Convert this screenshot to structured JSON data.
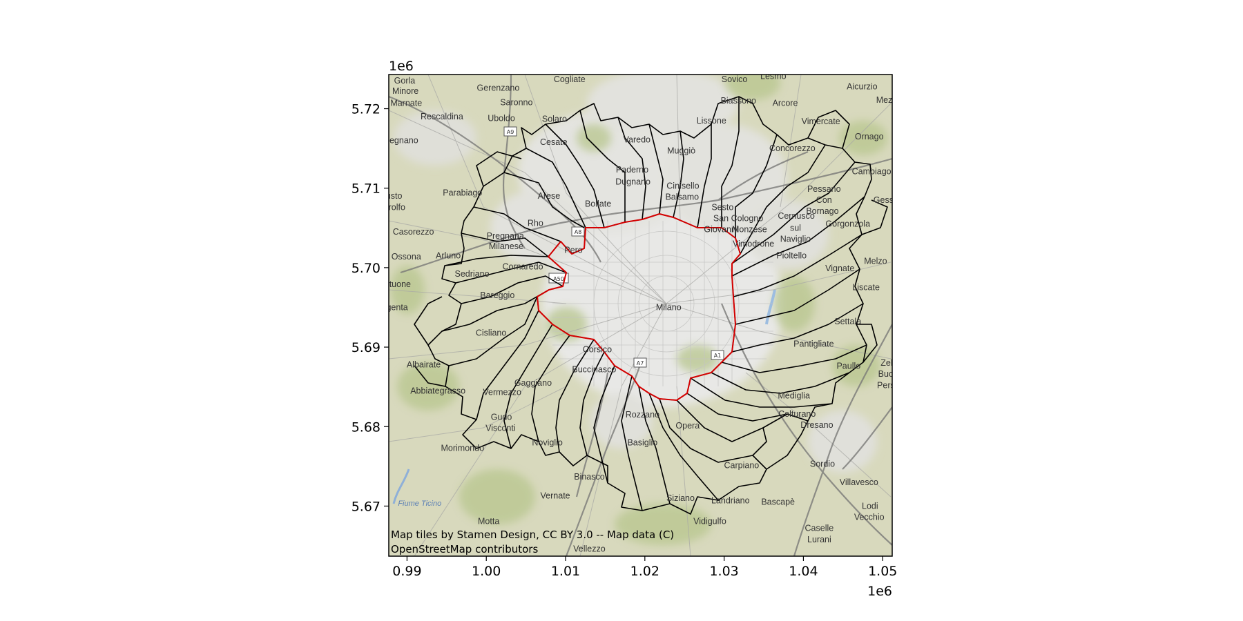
{
  "chart_data": {
    "type": "map",
    "x_axis": {
      "range": [
        0.9877,
        1.0512
      ],
      "ticks": [
        0.99,
        1.0,
        1.01,
        1.02,
        1.03,
        1.04,
        1.05
      ],
      "tick_labels": [
        "0.99",
        "1.00",
        "1.01",
        "1.02",
        "1.03",
        "1.04",
        "1.05"
      ],
      "offset_text": "1e6"
    },
    "y_axis": {
      "range": [
        5.6637,
        5.7243
      ],
      "ticks": [
        5.67,
        5.68,
        5.69,
        5.7,
        5.71,
        5.72
      ],
      "tick_labels": [
        "5.67",
        "5.68",
        "5.69",
        "5.70",
        "5.71",
        "5.72"
      ],
      "offset_text": "1e6"
    },
    "attribution": [
      "Map tiles by Stamen Design, CC BY 3.0 -- Map data (C)",
      "OpenStreetMap contributors"
    ],
    "colors": {
      "municipal_boundary": "#000000",
      "highlighted_boundary": "#d40000",
      "land": "#dcdcc4",
      "urban": "#e6e6e6",
      "green": "#b9c993"
    },
    "place_labels": [
      {
        "text": "Gorla",
        "x": 0.9897,
        "y": 5.7235
      },
      {
        "text": "Minore",
        "x": 0.9898,
        "y": 5.7222
      },
      {
        "text": "Marnate",
        "x": 0.9899,
        "y": 5.7207
      },
      {
        "text": "Gerenzano",
        "x": 1.0015,
        "y": 5.7226
      },
      {
        "text": "Cogliate",
        "x": 1.0105,
        "y": 5.7237
      },
      {
        "text": "Sovico",
        "x": 1.0313,
        "y": 5.7237
      },
      {
        "text": "Lesmo",
        "x": 1.0362,
        "y": 5.7241
      },
      {
        "text": "Aicurzio",
        "x": 1.0474,
        "y": 5.7228
      },
      {
        "text": "Mez",
        "x": 1.0502,
        "y": 5.7211
      },
      {
        "text": "Saronno",
        "x": 1.0038,
        "y": 5.7208
      },
      {
        "text": "Biassono",
        "x": 1.0318,
        "y": 5.721
      },
      {
        "text": "Arcore",
        "x": 1.0377,
        "y": 5.7207
      },
      {
        "text": "Rescaldina",
        "x": 0.9944,
        "y": 5.719
      },
      {
        "text": "Uboldo",
        "x": 1.0019,
        "y": 5.7188
      },
      {
        "text": "Solaro",
        "x": 1.0086,
        "y": 5.7187
      },
      {
        "text": "Lissone",
        "x": 1.0284,
        "y": 5.7185
      },
      {
        "text": "Vimercate",
        "x": 1.0422,
        "y": 5.7184
      },
      {
        "text": "Ornago",
        "x": 1.0483,
        "y": 5.7165
      },
      {
        "text": "Legnano",
        "x": 0.9893,
        "y": 5.716
      },
      {
        "text": "Cesate",
        "x": 1.0085,
        "y": 5.7158
      },
      {
        "text": "Varedo",
        "x": 1.019,
        "y": 5.7161
      },
      {
        "text": "Muggiò",
        "x": 1.0246,
        "y": 5.7147
      },
      {
        "text": "Concorezzo",
        "x": 1.0386,
        "y": 5.715
      },
      {
        "text": "Cambiago",
        "x": 1.0486,
        "y": 5.7121
      },
      {
        "text": "Paderno",
        "x": 1.0184,
        "y": 5.7123
      },
      {
        "text": "Dugnano",
        "x": 1.0185,
        "y": 5.7108
      },
      {
        "text": "Cinisello",
        "x": 1.0248,
        "y": 5.7103
      },
      {
        "text": "Balsamo",
        "x": 1.0247,
        "y": 5.7089
      },
      {
        "text": "Parabiago",
        "x": 0.997,
        "y": 5.7094
      },
      {
        "text": "Arese",
        "x": 1.0079,
        "y": 5.709
      },
      {
        "text": "Pessano",
        "x": 1.0426,
        "y": 5.7099
      },
      {
        "text": "Con",
        "x": 1.0426,
        "y": 5.7085
      },
      {
        "text": "Busto",
        "x": 0.988,
        "y": 5.709
      },
      {
        "text": "Garolfo",
        "x": 0.988,
        "y": 5.7076
      },
      {
        "text": "Bollate",
        "x": 1.0141,
        "y": 5.708
      },
      {
        "text": "Sesto",
        "x": 1.0298,
        "y": 5.7076
      },
      {
        "text": "San",
        "x": 1.0296,
        "y": 5.7062
      },
      {
        "text": "Giovanni",
        "x": 1.0296,
        "y": 5.7048
      },
      {
        "text": "Cologno",
        "x": 1.0329,
        "y": 5.7062
      },
      {
        "text": "Monzese",
        "x": 1.0332,
        "y": 5.7048
      },
      {
        "text": "Cernusco",
        "x": 1.0391,
        "y": 5.7065
      },
      {
        "text": "sul",
        "x": 1.039,
        "y": 5.705
      },
      {
        "text": "Naviglio",
        "x": 1.039,
        "y": 5.7036
      },
      {
        "text": "Bornago",
        "x": 1.0424,
        "y": 5.7071
      },
      {
        "text": "Gorgonzola",
        "x": 1.0456,
        "y": 5.7055
      },
      {
        "text": "Gess",
        "x": 1.0501,
        "y": 5.7085
      },
      {
        "text": "Rho",
        "x": 1.0062,
        "y": 5.7056
      },
      {
        "text": "Casorezzo",
        "x": 0.9908,
        "y": 5.7045
      },
      {
        "text": "Pregnana",
        "x": 1.0024,
        "y": 5.704
      },
      {
        "text": "Milanese",
        "x": 1.0025,
        "y": 5.7027
      },
      {
        "text": "Pero",
        "x": 1.011,
        "y": 5.7022
      },
      {
        "text": "Vimodrone",
        "x": 1.0337,
        "y": 5.703
      },
      {
        "text": "Pioltello",
        "x": 1.0385,
        "y": 5.7015
      },
      {
        "text": "Melzo",
        "x": 1.0491,
        "y": 5.7008
      },
      {
        "text": "Ossona",
        "x": 0.9899,
        "y": 5.7014
      },
      {
        "text": "Arluno",
        "x": 0.9952,
        "y": 5.7015
      },
      {
        "text": "Cornaredo",
        "x": 1.0046,
        "y": 5.7001
      },
      {
        "text": "Sedriano",
        "x": 0.9982,
        "y": 5.6992
      },
      {
        "text": "Vignate",
        "x": 1.0446,
        "y": 5.6999
      },
      {
        "text": "Vittuone",
        "x": 0.9885,
        "y": 5.6979
      },
      {
        "text": "Liscate",
        "x": 1.0479,
        "y": 5.6975
      },
      {
        "text": "Bareggio",
        "x": 1.0014,
        "y": 5.6965
      },
      {
        "text": "Milano",
        "x": 1.023,
        "y": 5.695
      },
      {
        "text": "Magenta",
        "x": 0.988,
        "y": 5.695
      },
      {
        "text": "Settala",
        "x": 1.0456,
        "y": 5.6932
      },
      {
        "text": "Cisliano",
        "x": 1.0006,
        "y": 5.6918
      },
      {
        "text": "Pantigliate",
        "x": 1.0413,
        "y": 5.6904
      },
      {
        "text": "Corsico",
        "x": 1.014,
        "y": 5.6897
      },
      {
        "text": "Albairate",
        "x": 0.9921,
        "y": 5.6878
      },
      {
        "text": "Paullo",
        "x": 1.0457,
        "y": 5.6876
      },
      {
        "text": "Buccinasco",
        "x": 1.0136,
        "y": 5.6872
      },
      {
        "text": "Zelo",
        "x": 1.0508,
        "y": 5.688
      },
      {
        "text": "Buon",
        "x": 1.0507,
        "y": 5.6866
      },
      {
        "text": "Persic",
        "x": 1.0508,
        "y": 5.6852
      },
      {
        "text": "Gaggiano",
        "x": 1.0059,
        "y": 5.6855
      },
      {
        "text": "Abbiategrasso",
        "x": 0.9939,
        "y": 5.6845
      },
      {
        "text": "Vermezzo",
        "x": 1.002,
        "y": 5.6843
      },
      {
        "text": "Mediglia",
        "x": 1.0388,
        "y": 5.6839
      },
      {
        "text": "Rozzano",
        "x": 1.0197,
        "y": 5.6815
      },
      {
        "text": "Colturano",
        "x": 1.0392,
        "y": 5.6816
      },
      {
        "text": "Gudo",
        "x": 1.0019,
        "y": 5.6812
      },
      {
        "text": "Visconti",
        "x": 1.0018,
        "y": 5.6798
      },
      {
        "text": "Opera",
        "x": 1.0254,
        "y": 5.6801
      },
      {
        "text": "Dresano",
        "x": 1.0417,
        "y": 5.6802
      },
      {
        "text": "Noviglio",
        "x": 1.0077,
        "y": 5.678
      },
      {
        "text": "Basiglio",
        "x": 1.0197,
        "y": 5.678
      },
      {
        "text": "Morimondo",
        "x": 0.997,
        "y": 5.6773
      },
      {
        "text": "Carpiano",
        "x": 1.0322,
        "y": 5.6751
      },
      {
        "text": "Sordio",
        "x": 1.0424,
        "y": 5.6753
      },
      {
        "text": "Binasco",
        "x": 1.013,
        "y": 5.6737
      },
      {
        "text": "Villavesco",
        "x": 1.047,
        "y": 5.673
      },
      {
        "text": "Vernate",
        "x": 1.0087,
        "y": 5.6713
      },
      {
        "text": "Siziano",
        "x": 1.0245,
        "y": 5.671
      },
      {
        "text": "Landriano",
        "x": 1.0308,
        "y": 5.6707
      },
      {
        "text": "Bascapè",
        "x": 1.0368,
        "y": 5.6705
      },
      {
        "text": "Lodi",
        "x": 1.0484,
        "y": 5.67
      },
      {
        "text": "Vecchio",
        "x": 1.0483,
        "y": 5.6686
      },
      {
        "text": "Motta",
        "x": 1.0003,
        "y": 5.6681
      },
      {
        "text": "Vidigulfo",
        "x": 1.0282,
        "y": 5.6681
      },
      {
        "text": "Caselle",
        "x": 1.042,
        "y": 5.6672
      },
      {
        "text": "Lurani",
        "x": 1.042,
        "y": 5.6658
      },
      {
        "text": "Vellezzo",
        "x": 1.013,
        "y": 5.6646
      }
    ],
    "water_labels": [
      {
        "text": "Fiume Ticino",
        "x": 0.9916,
        "y": 5.6704
      }
    ]
  }
}
